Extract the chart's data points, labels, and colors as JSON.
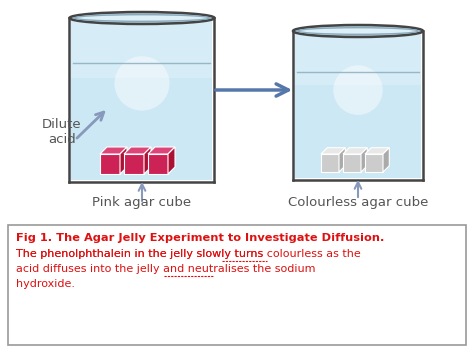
{
  "bg_color": "#ffffff",
  "beaker_fill": "#cce8f4",
  "beaker_fill_upper": "#ddf0f8",
  "beaker_edge_color": "#444444",
  "beaker_rim_top_color": "#8aaabb",
  "beaker_rim_fill": "#b8d4e0",
  "water_line_color": "#88aabb",
  "pink_cube_color": "#cc2255",
  "pink_cube_top": "#dd4477",
  "pink_cube_side": "#aa1133",
  "white_cube_color": "#cccccc",
  "white_cube_top": "#e8e8e8",
  "white_cube_side": "#aaaaaa",
  "arrow_color": "#5577aa",
  "small_arrow_color": "#8899bb",
  "dilute_acid_label": "Dilute\nacid",
  "pink_label": "Pink agar cube",
  "colourless_label": "Colourless agar cube",
  "fig_title_bold": "Fig 1. The Agar Jelly Experiment to Investigate Diffusion.",
  "body_line1": "The phenolphthalein in the jelly slowly turns colourless as the",
  "body_line2": "acid diffuses into the jelly and neutralises the sodium",
  "body_line3": "hydroxide.",
  "underline1": "colourless",
  "underline2": "neutralises",
  "text_color": "#dd1111",
  "box_border_color": "#999999",
  "label_color": "#555555",
  "highlight_color": "#eef8ff"
}
